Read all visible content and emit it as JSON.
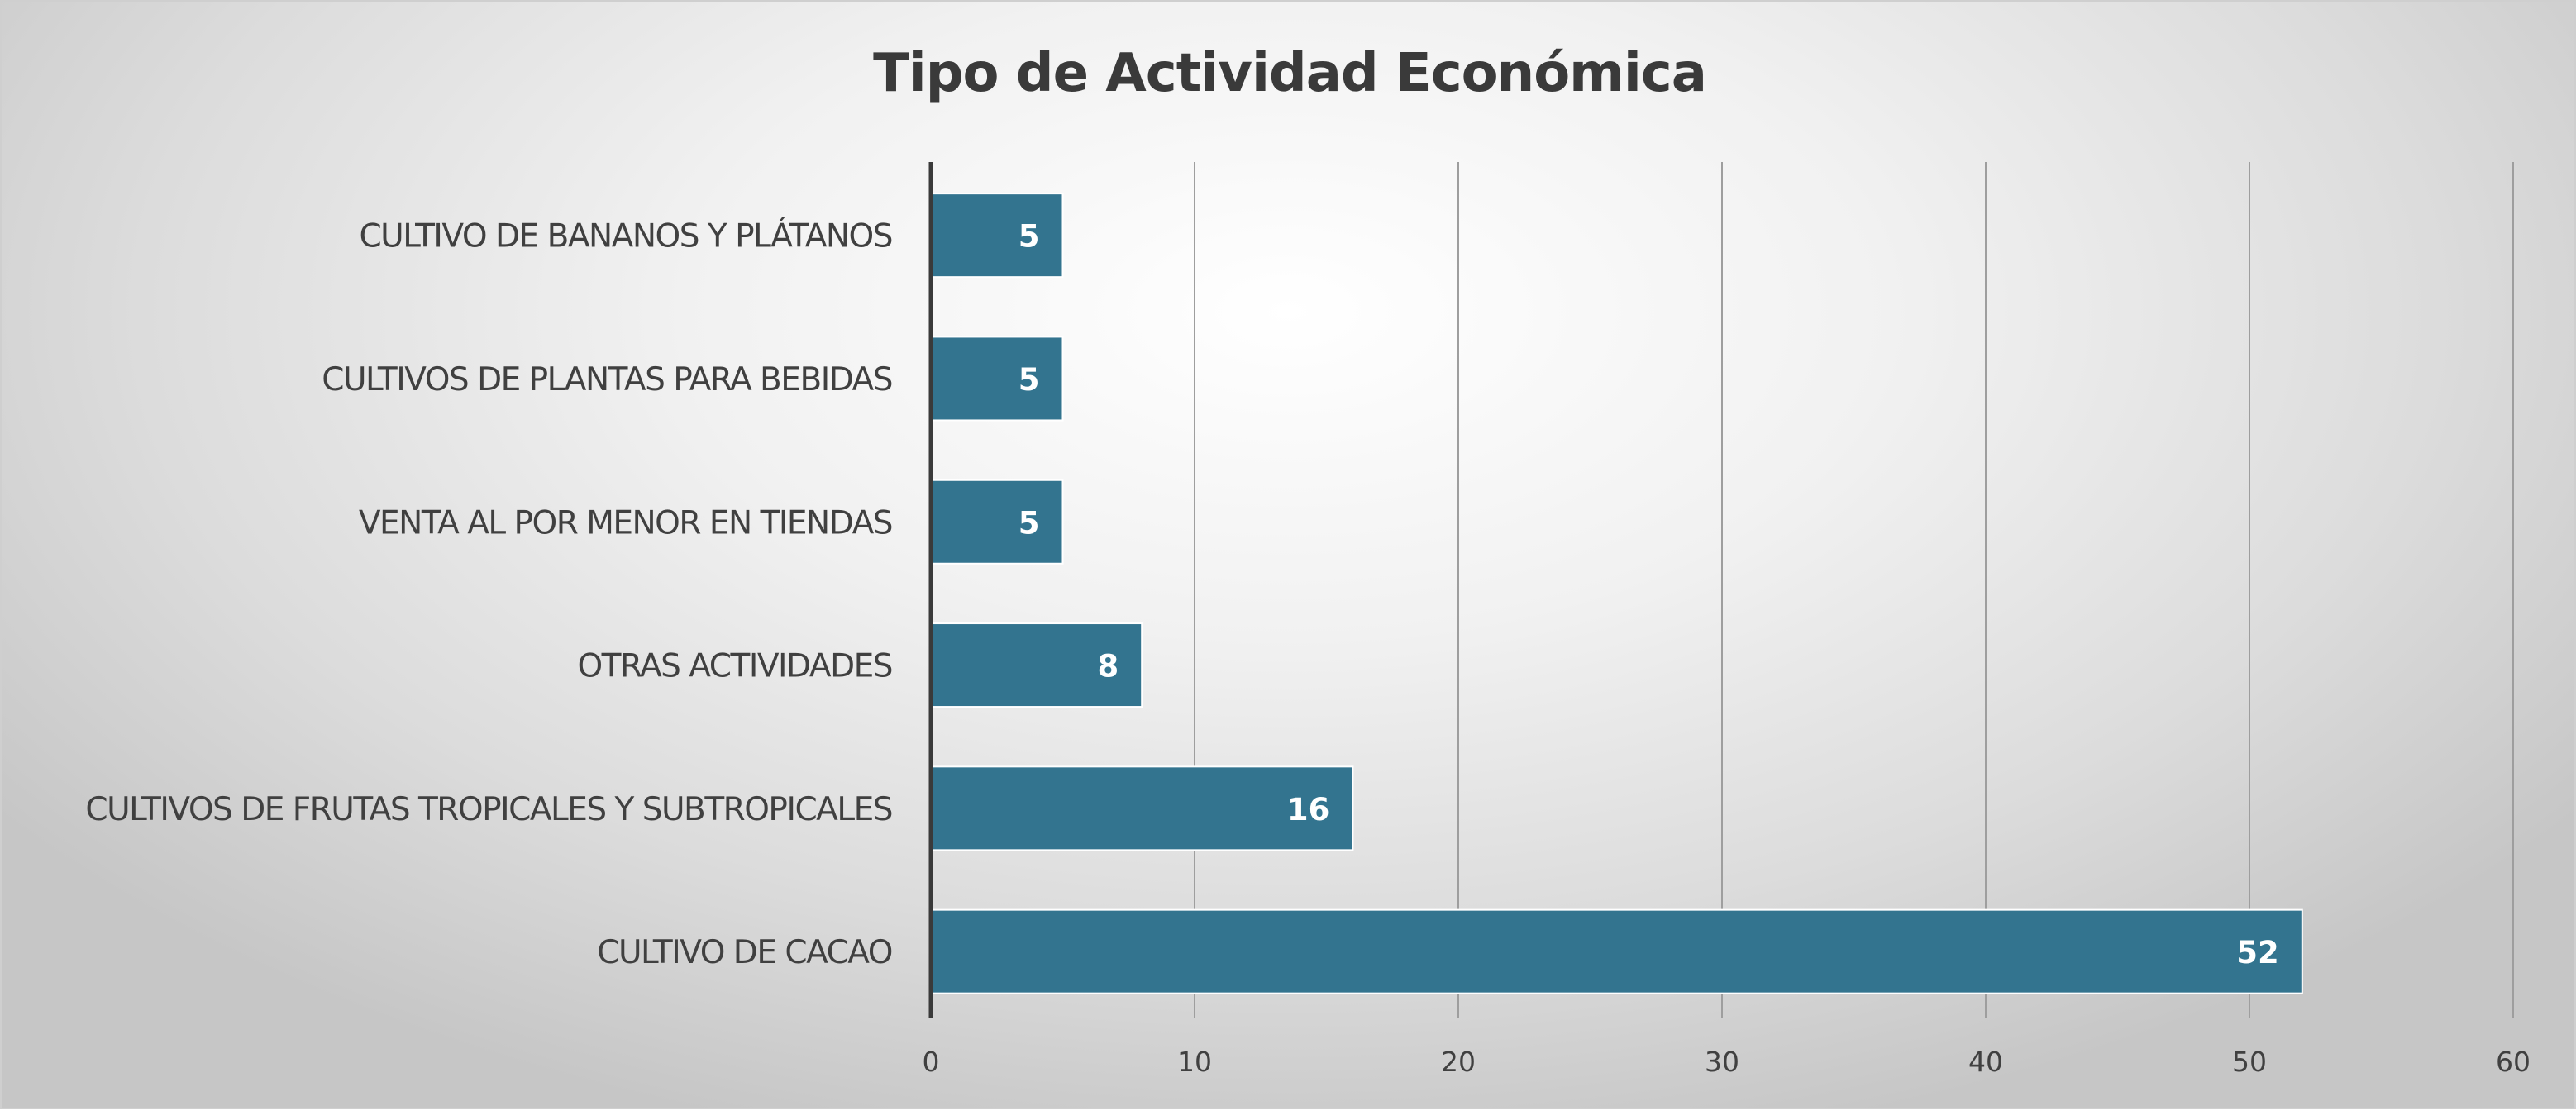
{
  "chart_data": {
    "type": "bar",
    "orientation": "horizontal",
    "title": "Tipo de Actividad Económica",
    "categories": [
      "CULTIVO DE BANANOS Y PLÁTANOS",
      "CULTIVOS DE PLANTAS PARA BEBIDAS",
      "VENTA AL POR MENOR EN TIENDAS",
      "OTRAS ACTIVIDADES",
      "CULTIVOS DE FRUTAS TROPICALES Y SUBTROPICALES",
      "CULTIVO DE CACAO"
    ],
    "values": [
      5,
      5,
      5,
      8,
      16,
      52
    ],
    "data_labels": [
      "5",
      "5",
      "5",
      "8",
      "16",
      "52"
    ],
    "xlim": [
      0,
      60
    ],
    "x_ticks": [
      "0",
      "10",
      "20",
      "30",
      "40",
      "50",
      "60"
    ],
    "xlabel": "",
    "ylabel": "",
    "grid": "vertical",
    "legend": "none",
    "colors": {
      "bar": "#33748f",
      "bar_edge": "#ffffff",
      "axis": "#3a3a3a",
      "grid": "#9e9e9e"
    }
  }
}
